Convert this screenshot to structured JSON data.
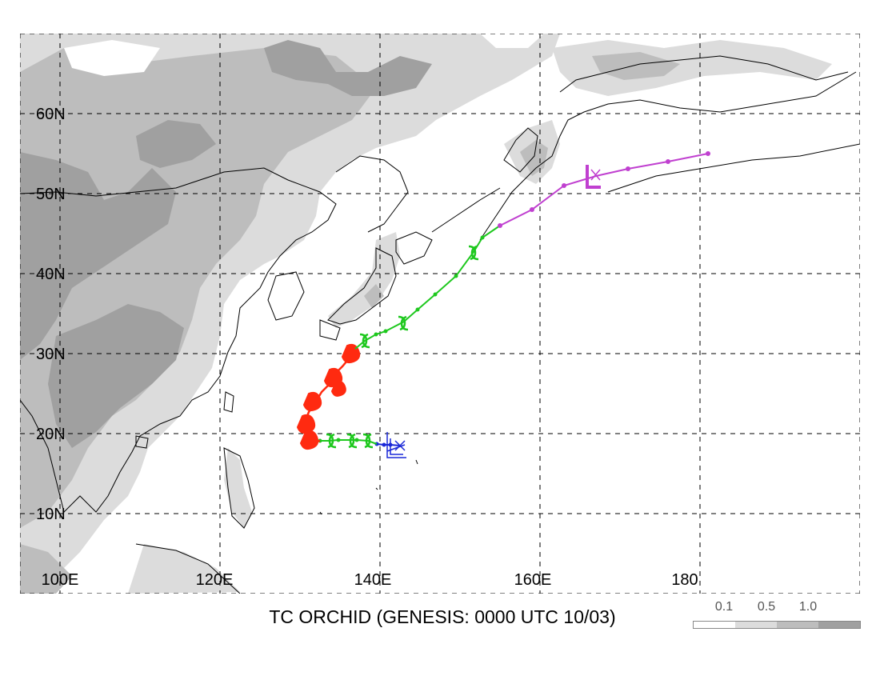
{
  "title": "TC ORCHID (GENESIS: 0000 UTC 10/03)",
  "lat_labels": [
    "60N",
    "50N",
    "40N",
    "30N",
    "20N",
    "10N"
  ],
  "lon_labels": [
    "100E",
    "120E",
    "140E",
    "160E",
    "180"
  ],
  "legend": {
    "ticks": [
      "0.1",
      "0.5",
      "1.0"
    ],
    "colors": [
      "#ffffff",
      "#dcdcdc",
      "#bdbdbd",
      "#a0a0a0"
    ]
  },
  "track": {
    "genesis": {
      "lon": 142.0,
      "lat": 18.6
    },
    "dissipation": {
      "lon": 167.2,
      "lat": 52.2
    },
    "colors": {
      "depression": "#1a28d8",
      "storm": "#1ec81e",
      "typhoon": "#ff2a10",
      "extratropical": "#c040d0"
    }
  }
}
